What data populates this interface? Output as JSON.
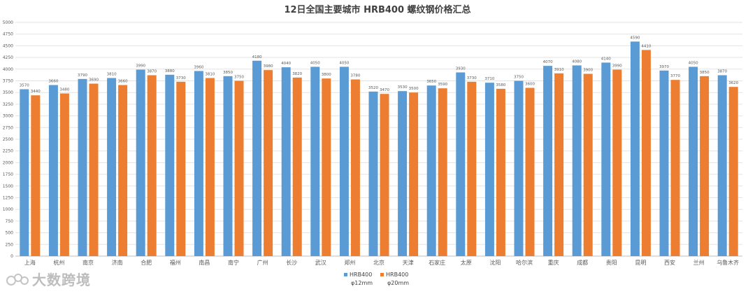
{
  "chart_data": {
    "type": "bar",
    "title": "12日全国主要城市 HRB400 螺纹钢价格汇总",
    "xlabel": "",
    "ylabel": "",
    "ylim": [
      0,
      5000
    ],
    "yticks": [
      0,
      250,
      500,
      750,
      1000,
      1250,
      1500,
      1750,
      2000,
      2250,
      2500,
      2750,
      3000,
      3250,
      3500,
      3750,
      4000,
      4250,
      4500,
      4750,
      5000
    ],
    "grid": true,
    "legend_position": "bottom",
    "categories": [
      "上海",
      "杭州",
      "南京",
      "济南",
      "合肥",
      "福州",
      "南昌",
      "南宁",
      "广州",
      "长沙",
      "武汉",
      "郑州",
      "北京",
      "天津",
      "石家庄",
      "太原",
      "沈阳",
      "哈尔滨",
      "重庆",
      "成都",
      "贵阳",
      "昆明",
      "西安",
      "兰州",
      "乌鲁木齐"
    ],
    "series": [
      {
        "name": "HRB400 φ12mm",
        "name_line1": "HRB400",
        "name_line2": "φ12mm",
        "color": "#5b9bd5",
        "values": [
          3570,
          3660,
          3790,
          3810,
          3990,
          3880,
          3960,
          3850,
          4180,
          4040,
          4050,
          4050,
          3520,
          3530,
          3650,
          3930,
          3710,
          3750,
          4070,
          4080,
          4140,
          4590,
          3970,
          4050,
          3870
        ]
      },
      {
        "name": "HRB400 φ20mm",
        "name_line1": "HRB400",
        "name_line2": "φ20mm",
        "color": "#ed7d31",
        "values": [
          3440,
          3480,
          3690,
          3660,
          3870,
          3730,
          3810,
          3750,
          3980,
          3820,
          3800,
          3780,
          3470,
          3500,
          3590,
          3730,
          3580,
          3600,
          3910,
          3900,
          3990,
          4410,
          3770,
          3850,
          3620
        ]
      }
    ]
  },
  "watermark": {
    "text": "大数跨境"
  }
}
